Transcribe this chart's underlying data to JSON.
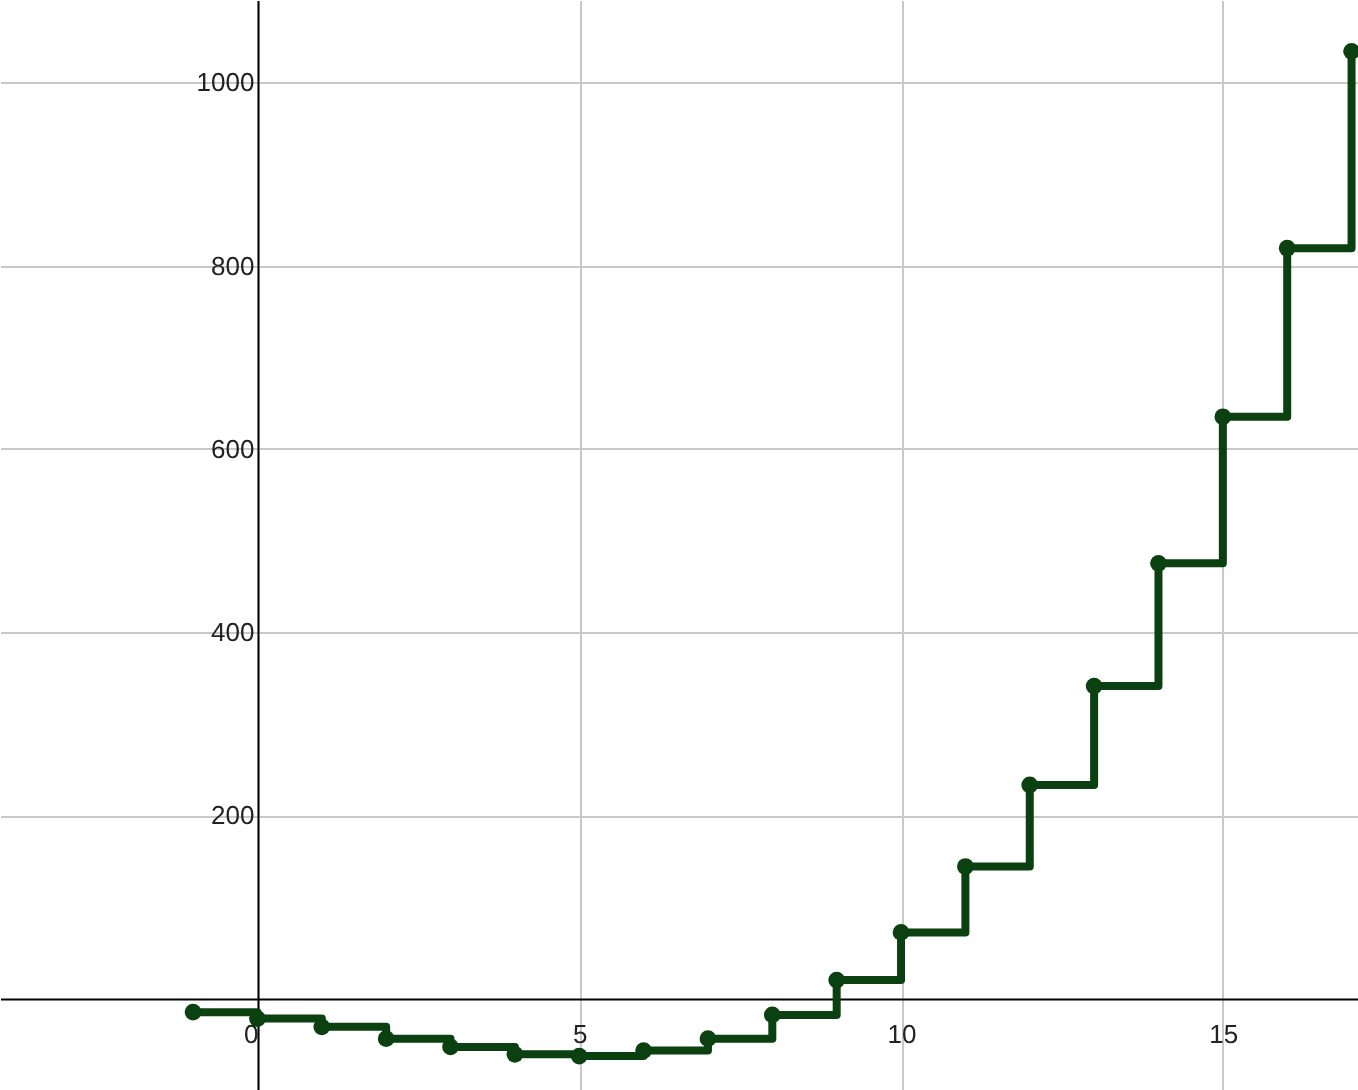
{
  "chart_data": {
    "type": "step",
    "x": [
      -1,
      0,
      1,
      2,
      3,
      4,
      5,
      6,
      7,
      8,
      9,
      10,
      11,
      12,
      13,
      14,
      15,
      16,
      17
    ],
    "series": [
      {
        "color": "#0b4010",
        "values": [
          -15,
          -22,
          -31,
          -44,
          -53,
          -61,
          -63,
          -57,
          -44,
          -18,
          20,
          72,
          144,
          233,
          341,
          475,
          635,
          819,
          1034
        ]
      }
    ],
    "xlim": [
      -4,
      17.1
    ],
    "xticks": [
      0,
      5,
      10,
      15
    ],
    "ylim": [
      -100,
      1090
    ],
    "yticks": [
      200,
      400,
      600,
      800,
      1000
    ],
    "grid": true,
    "marker": "circle",
    "line_style": "solid"
  }
}
